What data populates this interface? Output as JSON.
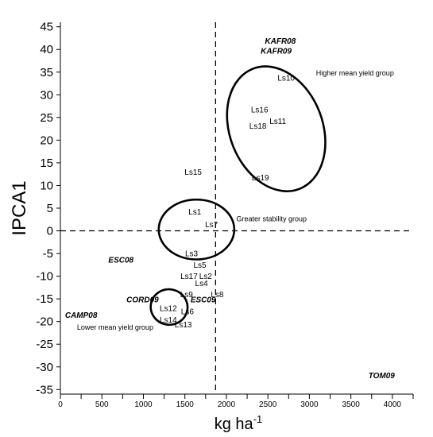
{
  "chart_data": {
    "type": "scatter",
    "title": "",
    "xlabel": "kg ha",
    "xlabel_superscript": "-1",
    "ylabel": "IPCA1",
    "xlim": [
      0,
      4250
    ],
    "ylim": [
      -36,
      46
    ],
    "x_ticks": [
      0,
      500,
      1000,
      1500,
      2000,
      2500,
      3000,
      3500,
      4000
    ],
    "y_ticks": [
      -35,
      -30,
      -25,
      -20,
      -15,
      -10,
      -5,
      0,
      5,
      10,
      15,
      20,
      25,
      30,
      35,
      40,
      45
    ],
    "reference_lines": {
      "x": 1870,
      "y": 0,
      "style": "dashed"
    },
    "genotypes": [
      {
        "label": "Ls10",
        "x": 2720,
        "y": 33.8
      },
      {
        "label": "Ls16",
        "x": 2400,
        "y": 26.8
      },
      {
        "label": "Ls11",
        "x": 2620,
        "y": 24.3
      },
      {
        "label": "Ls18",
        "x": 2380,
        "y": 23.2
      },
      {
        "label": "Ls19",
        "x": 2410,
        "y": 11.8
      },
      {
        "label": "Ls15",
        "x": 1600,
        "y": 13.1
      },
      {
        "label": "Ls1",
        "x": 1620,
        "y": 4.3
      },
      {
        "label": "Ls7",
        "x": 1820,
        "y": 1.5
      },
      {
        "label": "Ls3",
        "x": 1580,
        "y": -4.9
      },
      {
        "label": "Ls5",
        "x": 1680,
        "y": -7.4
      },
      {
        "label": "Ls17",
        "x": 1550,
        "y": -9.9
      },
      {
        "label": "Ls2",
        "x": 1750,
        "y": -9.9
      },
      {
        "label": "Ls4",
        "x": 1700,
        "y": -11.5
      },
      {
        "label": "Ls9",
        "x": 1520,
        "y": -13.9
      },
      {
        "label": "Ls8",
        "x": 1890,
        "y": -13.9
      },
      {
        "label": "Ls12",
        "x": 1300,
        "y": -17.0
      },
      {
        "label": "Ls6",
        "x": 1530,
        "y": -17.7
      },
      {
        "label": "Ls14",
        "x": 1300,
        "y": -19.5
      },
      {
        "label": "Ls13",
        "x": 1480,
        "y": -20.6
      }
    ],
    "environments": [
      {
        "label": "KAFR08",
        "x": 2650,
        "y": 42.0
      },
      {
        "label": "KAFR09",
        "x": 2600,
        "y": 39.8
      },
      {
        "label": "ESC08",
        "x": 730,
        "y": -6.3
      },
      {
        "label": "CORD09",
        "x": 990,
        "y": -15.1
      },
      {
        "label": "ESC09",
        "x": 1720,
        "y": -15.1
      },
      {
        "label": "CAMP08",
        "x": 250,
        "y": -18.5
      },
      {
        "label": "TOM09",
        "x": 3870,
        "y": -31.8
      }
    ],
    "groups": [
      {
        "label": "Higher mean  yield group",
        "cx": 2600,
        "cy": 22.5,
        "rx": 560,
        "ry": 14.2,
        "rotate": 21,
        "label_x": 3080,
        "label_y": 34.3
      },
      {
        "label": "Greater stability group",
        "cx": 1640,
        "cy": 0.3,
        "rx": 455,
        "ry": 6.6,
        "rotate": 0,
        "label_x": 2120,
        "label_y": 2.1
      },
      {
        "label": "Lower mean yield group",
        "cx": 1310,
        "cy": -16.8,
        "rx": 222,
        "ry": 3.9,
        "rotate": -10,
        "label_x": 200,
        "label_y": -21.8
      }
    ]
  }
}
